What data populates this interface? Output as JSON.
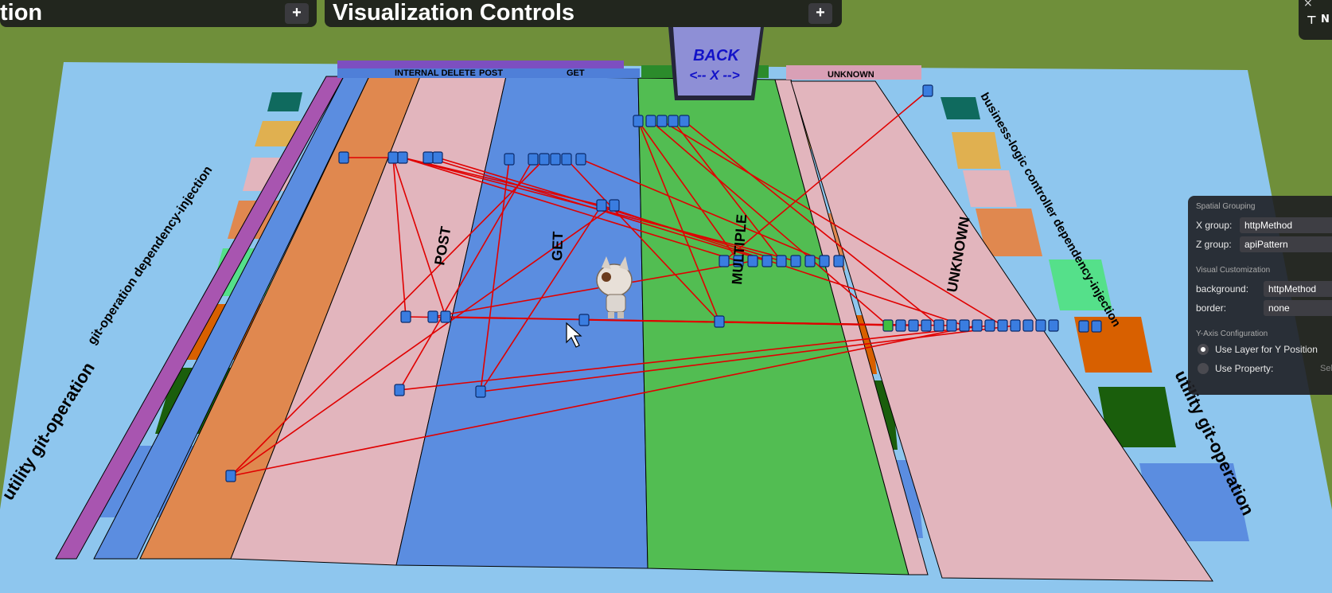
{
  "header_left": {
    "title": "tion",
    "add_label": "+"
  },
  "header_main": {
    "title": "Visualization Controls",
    "add_label": "+"
  },
  "top_right": {
    "close": "×",
    "label": "N"
  },
  "board": {
    "back_sign": {
      "line1": "BACK",
      "line2": "<-- X -->"
    },
    "lane_labels": [
      "POST",
      "GET",
      "MULTIPLE",
      "UNKNOWN"
    ],
    "top_tags": {
      "left_stack": "INTERNAL DELETE",
      "post": "POST",
      "get": "GET",
      "unknown": "UNKNOWN"
    },
    "side_labels": {
      "left_top": "git-operation dependency-injection",
      "left_bottom": "utility git-operation",
      "right_top": "business-logic controller dependency-injection",
      "right_bottom": "utility git-operation"
    },
    "colors": {
      "grass": "#6f8f3a",
      "platform": "#8ec6ee",
      "purple": "#a855b0",
      "blue": "#5b8de0",
      "orange": "#e0884f",
      "pink": "#e2b5bd",
      "green": "#52bd52",
      "edge": "#e00000"
    }
  },
  "settings": {
    "spatial_grouping": "Spatial Grouping",
    "x_group_label": "X group:",
    "x_group_value": "httpMethod",
    "z_group_label": "Z group:",
    "z_group_value": "apiPattern",
    "visual_customization": "Visual Customization",
    "background_label": "background:",
    "background_value": "httpMethod",
    "border_label": "border:",
    "border_value": "none",
    "y_axis": "Y-Axis Configuration",
    "use_layer": "Use Layer for Y Position",
    "use_property": "Use Property:",
    "select": "Sel"
  }
}
